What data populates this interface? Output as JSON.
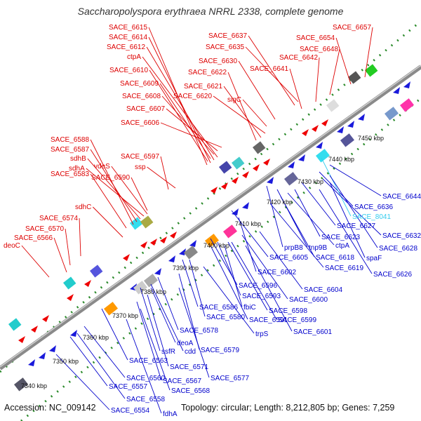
{
  "title": "Saccharopolyspora erythraea NRRL 2338, complete genome",
  "footer": {
    "accession": "Accession: NC_009142",
    "summary": "Topology: circular; Length: 8,212,805 bp; Genes: 7,259"
  },
  "colors": {
    "backbone": "#9a9a9a",
    "forward_label": "#dd0000",
    "reverse_label": "#0000cc",
    "highlight_label": "#33ccee",
    "gc_dots": "#2a8a2a"
  },
  "scale_ticks": [
    "7340 kbp",
    "7350 kbp",
    "7360 kbp",
    "7370 kbp",
    "7380 kbp",
    "7390 kbp",
    "7400 kbp",
    "7410 kbp",
    "7420 kbp",
    "7430 kbp",
    "7440 kbp",
    "7450 kbp"
  ],
  "top_labels": [
    "SACE_6615",
    "SACE_6614",
    "SACE_6612",
    "ctpA",
    "SACE_6610",
    "SACE_6609",
    "SACE_6608",
    "SACE_6607",
    "SACE_6606",
    "SACE_6622",
    "SACE_6621",
    "SACE_6620",
    "SACE_6637",
    "SACE_6635",
    "SACE_6630",
    "SACE_6657",
    "SACE_6654",
    "SACE_6648",
    "SACE_6642",
    "SACE_6641",
    "sigC",
    "SACE_6588",
    "SACE_6587",
    "sdhB",
    "sdhA",
    "SACE_6583",
    "vdeS",
    "SACE_6590",
    "SACE_6597",
    "ssp",
    "sdhC",
    "deoC",
    "SACE_6574",
    "SACE_6570",
    "SACE_6566"
  ],
  "bottom_labels": [
    "SACE_6644",
    "SACE_6636",
    "SACE_8041",
    "SACE_6627",
    "SACE_6632",
    "SACE_6623",
    "ctpA",
    "SACE_6628",
    "prpB8",
    "tnp9B",
    "SACE_6618",
    "spaF",
    "SACE_6605",
    "SACE_6619",
    "SACE_6626",
    "SACE_6602",
    "SACE_6596",
    "SACE_6604",
    "SACE_6593",
    "SACE_6600",
    "fbiC",
    "SACE_6598",
    "SACE_6586",
    "SACE_6591",
    "SACE_6599",
    "SACE_6580",
    "trpS",
    "SACE_6601",
    "SACE_6578",
    "deoA",
    "SACE_6579",
    "ssfR",
    "cdd",
    "SACE_6563",
    "SACE_6571",
    "SACE_6577",
    "SACE_6560",
    "SACE_6567",
    "SACE_6557",
    "SACE_6568",
    "SACE_6558",
    "SACE_6554",
    "fdhA"
  ]
}
